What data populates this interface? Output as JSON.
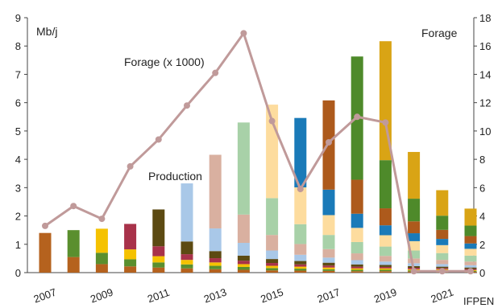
{
  "chart_data": {
    "type": "bar",
    "left_axis_label": "Mb/j",
    "right_axis_label": "Forage",
    "line_label": "Forage (x 1000)",
    "bar_label": "Production",
    "source": "IFPEN",
    "x_tick_labels": [
      "2007",
      "2009",
      "2011",
      "2013",
      "2015",
      "2017",
      "2019",
      "2021"
    ],
    "left_ticks": [
      "0",
      "1",
      "2",
      "3",
      "4",
      "5",
      "6",
      "7",
      "8",
      "9"
    ],
    "right_ticks": [
      "0",
      "2",
      "4",
      "6",
      "8",
      "10",
      "12",
      "14",
      "16",
      "18"
    ],
    "ylim_left": [
      0,
      9
    ],
    "ylim_right": [
      0,
      18
    ],
    "bar_years": [
      2007,
      2008,
      2009,
      2010,
      2011,
      2012,
      2013,
      2014,
      2015,
      2016,
      2017,
      2018,
      2019,
      2020,
      2021,
      2022
    ],
    "cohorts": [
      {
        "start": 2007,
        "color": "#b5621e",
        "values": [
          1.4,
          0.55,
          0.3,
          0.22,
          0.18,
          0.15,
          0.12,
          0.1,
          0.08,
          0.07,
          0.06,
          0.05,
          0.05,
          0.04,
          0.04,
          0.03
        ]
      },
      {
        "start": 2008,
        "color": "#5a8f2e",
        "values": [
          0,
          0.95,
          0.4,
          0.25,
          0.18,
          0.14,
          0.12,
          0.1,
          0.08,
          0.07,
          0.06,
          0.05,
          0.05,
          0.04,
          0.04,
          0.03
        ]
      },
      {
        "start": 2009,
        "color": "#f5c200",
        "values": [
          0,
          0,
          0.85,
          0.35,
          0.22,
          0.16,
          0.12,
          0.1,
          0.08,
          0.07,
          0.06,
          0.05,
          0.05,
          0.04,
          0.04,
          0.03
        ]
      },
      {
        "start": 2010,
        "color": "#a8324a",
        "values": [
          0,
          0,
          0,
          0.9,
          0.35,
          0.2,
          0.15,
          0.12,
          0.1,
          0.08,
          0.07,
          0.06,
          0.05,
          0.05,
          0.04,
          0.04
        ]
      },
      {
        "start": 2011,
        "color": "#5c4a12",
        "values": [
          0,
          0,
          0,
          0,
          1.3,
          0.45,
          0.25,
          0.18,
          0.14,
          0.12,
          0.1,
          0.08,
          0.07,
          0.06,
          0.05,
          0.05
        ]
      },
      {
        "start": 2012,
        "color": "#a9c8e8",
        "values": [
          0,
          0,
          0,
          0,
          0,
          2.05,
          0.8,
          0.45,
          0.3,
          0.22,
          0.18,
          0.15,
          0.12,
          0.1,
          0.09,
          0.08
        ]
      },
      {
        "start": 2013,
        "color": "#d9b0a0",
        "values": [
          0,
          0,
          0,
          0,
          0,
          0,
          2.6,
          1.0,
          0.55,
          0.38,
          0.3,
          0.24,
          0.2,
          0.17,
          0.15,
          0.13
        ]
      },
      {
        "start": 2014,
        "color": "#a8d1a8",
        "values": [
          0,
          0,
          0,
          0,
          0,
          0,
          0,
          3.25,
          1.3,
          0.7,
          0.5,
          0.4,
          0.33,
          0.28,
          0.24,
          0.21
        ]
      },
      {
        "start": 2015,
        "color": "#fddc9e",
        "values": [
          0,
          0,
          0,
          0,
          0,
          0,
          0,
          0,
          3.3,
          1.3,
          0.7,
          0.5,
          0.4,
          0.33,
          0.28,
          0.24
        ]
      },
      {
        "start": 2016,
        "color": "#1a7ab8",
        "values": [
          0,
          0,
          0,
          0,
          0,
          0,
          0,
          0,
          0,
          2.45,
          0.9,
          0.5,
          0.35,
          0.28,
          0.22,
          0.19
        ]
      },
      {
        "start": 2017,
        "color": "#ad5a1c",
        "values": [
          0,
          0,
          0,
          0,
          0,
          0,
          0,
          0,
          0,
          0,
          3.15,
          1.2,
          0.6,
          0.42,
          0.32,
          0.26
        ]
      },
      {
        "start": 2018,
        "color": "#4e8a2a",
        "values": [
          0,
          0,
          0,
          0,
          0,
          0,
          0,
          0,
          0,
          0,
          0,
          4.35,
          1.7,
          0.8,
          0.5,
          0.37
        ]
      },
      {
        "start": 2019,
        "color": "#d9a415",
        "values": [
          0,
          0,
          0,
          0,
          0,
          0,
          0,
          0,
          0,
          0,
          0,
          0,
          4.2,
          1.65,
          0.9,
          0.6
        ]
      }
    ],
    "line": {
      "years": [
        2007,
        2008,
        2009,
        2010,
        2011,
        2012,
        2013,
        2014,
        2015,
        2016,
        2017,
        2018,
        2019,
        2020,
        2021,
        2022
      ],
      "values": [
        3.3,
        4.7,
        3.8,
        7.5,
        9.4,
        11.8,
        14.1,
        16.9,
        10.7,
        5.9,
        9.2,
        11.0,
        10.6,
        0.1,
        0.1,
        0.1
      ],
      "color": "#c09a9a"
    },
    "grid": false
  }
}
